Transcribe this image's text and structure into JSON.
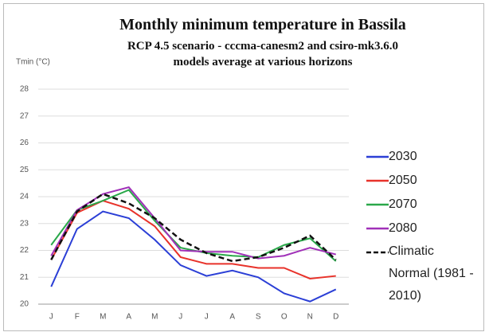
{
  "chart_data": {
    "type": "line",
    "title": "Monthly minimum  temperature in Bassila",
    "subtitle": "RCP 4.5 scenario - cccma-canesm2 and csiro-mk3.6.0 models average at various horizons",
    "y_label": "Tmin (°C)",
    "categories": [
      "J",
      "F",
      "M",
      "A",
      "M",
      "J",
      "J",
      "A",
      "S",
      "O",
      "N",
      "D"
    ],
    "ylim": [
      20,
      28
    ],
    "yticks": [
      20,
      21,
      22,
      23,
      24,
      25,
      26,
      27,
      28
    ],
    "grid": true,
    "series": [
      {
        "name": "2030",
        "color": "#2b3fd6",
        "linestyle": "solid",
        "values": [
          20.65,
          22.8,
          23.45,
          23.2,
          22.4,
          21.45,
          21.05,
          21.25,
          21.0,
          20.4,
          20.1,
          20.55
        ]
      },
      {
        "name": "2050",
        "color": "#e8322a",
        "linestyle": "solid",
        "values": [
          21.65,
          23.4,
          23.85,
          23.55,
          22.9,
          21.75,
          21.5,
          21.5,
          21.35,
          21.35,
          20.95,
          21.05
        ]
      },
      {
        "name": "2070",
        "color": "#2aa84a",
        "linestyle": "solid",
        "values": [
          22.2,
          23.5,
          23.85,
          24.25,
          23.1,
          22.1,
          21.9,
          21.8,
          21.75,
          22.2,
          22.45,
          21.6
        ]
      },
      {
        "name": "2080",
        "color": "#a030b8",
        "linestyle": "solid",
        "values": [
          21.8,
          23.5,
          24.1,
          24.35,
          23.2,
          22.0,
          21.95,
          21.95,
          21.7,
          21.8,
          22.1,
          21.85
        ]
      },
      {
        "name": "Climatic Normal (1981 - 2010)",
        "color": "#111111",
        "linestyle": "dashed",
        "values": [
          21.65,
          23.45,
          24.1,
          23.75,
          23.2,
          22.4,
          21.9,
          21.6,
          21.75,
          22.1,
          22.55,
          21.65
        ]
      }
    ]
  }
}
